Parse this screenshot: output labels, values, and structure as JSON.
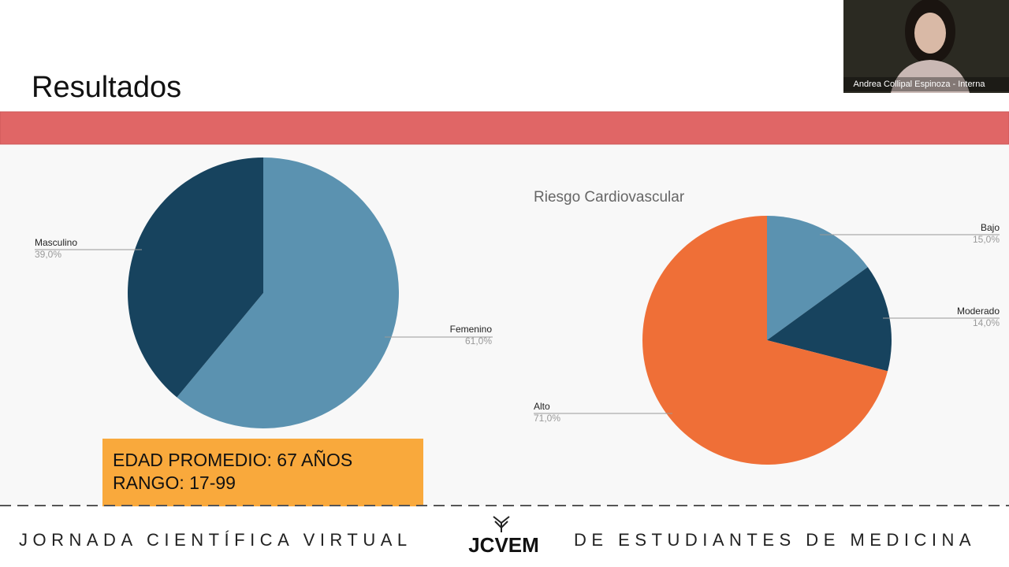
{
  "slide": {
    "title": "Resultados",
    "summary": [
      "EDAD PROMEDIO: 67 AÑOS",
      "RANGO: 17-99"
    ],
    "footer": {
      "left": "JORNADA CIENTÍFICA VIRTUAL",
      "logo": "JCVEM",
      "right": "DE ESTUDIANTES DE MEDICINA"
    }
  },
  "webcam": {
    "name": "Andrea Collipal Espinoza - Interna"
  },
  "chart_data": [
    {
      "type": "pie",
      "categories": [
        "Femenino",
        "Masculino"
      ],
      "values": [
        61,
        39
      ],
      "value_labels": [
        "61,0%",
        "39,0%"
      ],
      "colors": [
        "#5b92b0",
        "#17435e"
      ]
    },
    {
      "type": "pie",
      "title": "Riesgo Cardiovascular",
      "categories": [
        "Bajo",
        "Moderado",
        "Alto"
      ],
      "values": [
        15,
        14,
        71
      ],
      "value_labels": [
        "15,0%",
        "14,0%",
        "71,0%"
      ],
      "colors": [
        "#5b92b0",
        "#17435e",
        "#ef6f37"
      ]
    }
  ]
}
